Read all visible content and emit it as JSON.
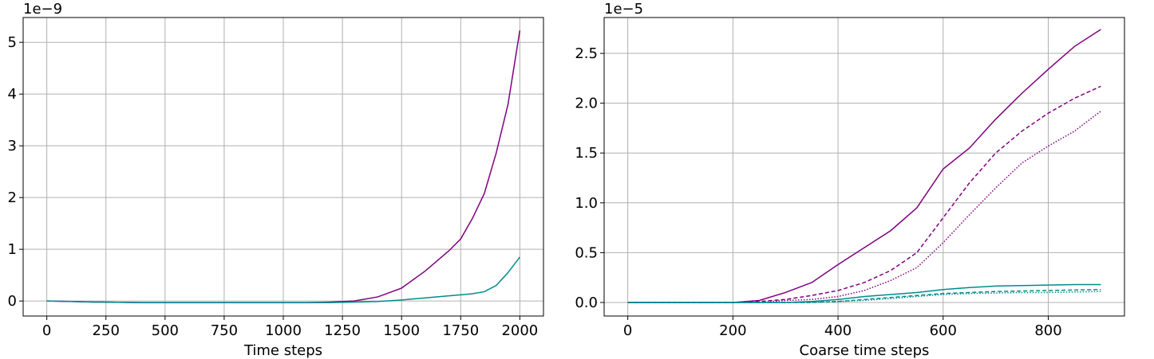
{
  "chart_data": [
    {
      "type": "line",
      "xlabel": "Time steps",
      "y_offset_label": "1e−9",
      "x": [
        0,
        100,
        200,
        300,
        400,
        500,
        600,
        700,
        800,
        900,
        1000,
        1100,
        1200,
        1300,
        1400,
        1500,
        1600,
        1700,
        1750,
        1800,
        1850,
        1900,
        1950,
        2000
      ],
      "series": [
        {
          "color": "#800080",
          "dash": "solid",
          "values": [
            0,
            -0.01,
            -0.02,
            -0.025,
            -0.03,
            -0.03,
            -0.03,
            -0.03,
            -0.03,
            -0.03,
            -0.03,
            -0.03,
            -0.02,
            0.0,
            0.08,
            0.25,
            0.58,
            0.97,
            1.2,
            1.6,
            2.08,
            2.86,
            3.8,
            5.23
          ]
        },
        {
          "color": "#008b8b",
          "dash": "solid",
          "values": [
            0,
            -0.01,
            -0.02,
            -0.025,
            -0.03,
            -0.03,
            -0.03,
            -0.03,
            -0.03,
            -0.03,
            -0.03,
            -0.03,
            -0.03,
            -0.02,
            -0.01,
            0.02,
            0.06,
            0.1,
            0.12,
            0.14,
            0.18,
            0.3,
            0.55,
            0.85
          ]
        }
      ],
      "xlim": [
        -100,
        2100
      ],
      "xticks": [
        0,
        250,
        500,
        750,
        1000,
        1250,
        1500,
        1750,
        2000
      ],
      "ylim": [
        -0.29,
        5.48
      ],
      "yticks": [
        0,
        1,
        2,
        3,
        4,
        5
      ],
      "grid": true
    },
    {
      "type": "line",
      "xlabel": "Coarse time steps",
      "y_offset_label": "1e−5",
      "x": [
        0,
        50,
        100,
        150,
        200,
        250,
        300,
        350,
        400,
        450,
        500,
        550,
        600,
        650,
        700,
        750,
        800,
        850,
        900
      ],
      "series": [
        {
          "color": "#800080",
          "dash": "solid",
          "values": [
            0,
            0,
            0,
            0,
            0,
            0.02,
            0.1,
            0.2,
            0.38,
            0.55,
            0.72,
            0.95,
            1.34,
            1.55,
            1.84,
            2.1,
            2.34,
            2.57,
            2.74
          ]
        },
        {
          "color": "#800080",
          "dash": "dashed",
          "values": [
            0,
            0,
            0,
            0,
            0,
            0.01,
            0.03,
            0.07,
            0.12,
            0.2,
            0.32,
            0.5,
            0.85,
            1.2,
            1.5,
            1.72,
            1.9,
            2.05,
            2.17
          ]
        },
        {
          "color": "#800080",
          "dash": "dotted",
          "values": [
            0,
            0,
            0,
            0,
            0,
            0,
            0.02,
            0.03,
            0.06,
            0.12,
            0.22,
            0.35,
            0.6,
            0.88,
            1.15,
            1.4,
            1.57,
            1.72,
            1.92
          ]
        },
        {
          "color": "#008b8b",
          "dash": "solid",
          "values": [
            0,
            0,
            0,
            0,
            0,
            0,
            0,
            0.01,
            0.03,
            0.06,
            0.08,
            0.1,
            0.13,
            0.15,
            0.165,
            0.17,
            0.175,
            0.18,
            0.18
          ]
        },
        {
          "color": "#008b8b",
          "dash": "dashed",
          "values": [
            0,
            0,
            0,
            0,
            0,
            0,
            0,
            0,
            0.01,
            0.03,
            0.05,
            0.07,
            0.09,
            0.1,
            0.11,
            0.115,
            0.12,
            0.125,
            0.13
          ]
        },
        {
          "color": "#008b8b",
          "dash": "dotted",
          "values": [
            0,
            0,
            0,
            0,
            0,
            0,
            0,
            0,
            0.01,
            0.02,
            0.04,
            0.06,
            0.08,
            0.09,
            0.095,
            0.1,
            0.1,
            0.105,
            0.11
          ]
        }
      ],
      "xlim": [
        -45,
        945
      ],
      "xticks": [
        0,
        200,
        400,
        600,
        800
      ],
      "ylim": [
        -0.136,
        2.86
      ],
      "yticks": [
        {
          "value": 0,
          "label": "0.0"
        },
        0.5,
        {
          "value": 1,
          "label": "1.0"
        },
        1.5,
        {
          "value": 2,
          "label": "2.0"
        },
        2.5
      ],
      "grid": true
    }
  ]
}
